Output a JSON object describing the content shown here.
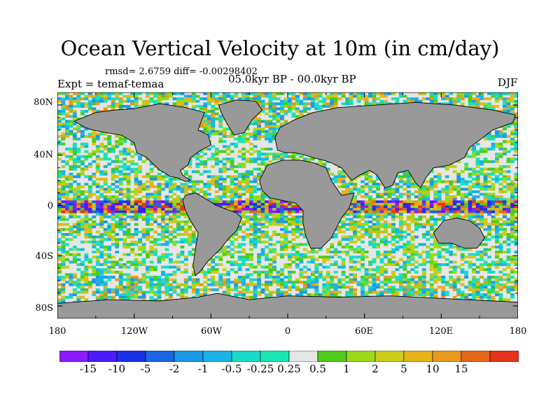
{
  "figure": {
    "title": "Ocean Vertical Velocity at 10m (in cm/day)",
    "stats": "rmsd= 2.6759 diff= -0.00298402",
    "experiment": "Expt = temaf-temaa",
    "period": "05.0kyr BP - 00.0kyr BP",
    "season": "DJF"
  },
  "map": {
    "projection": "cylindrical equidistant",
    "land_color": "#999999",
    "ocean_background": "#e6e6e6",
    "lat_labels": [
      "80N",
      "40N",
      "0",
      "40S",
      "80S"
    ],
    "lon_labels": [
      "180",
      "120W",
      "60W",
      "0",
      "60E",
      "120E",
      "180"
    ]
  },
  "colorbar": {
    "colors": [
      "#8c1aff",
      "#4d1aff",
      "#1a33e6",
      "#1a66e6",
      "#1a99e6",
      "#1ab3e6",
      "#1ad9c8",
      "#1ae6b3",
      "#e6e6e6",
      "#4dcc1a",
      "#99d91a",
      "#cccc1a",
      "#e6b31a",
      "#e6991a",
      "#e6661a",
      "#e6331a"
    ],
    "labels": [
      "-15",
      "-10",
      "-5",
      "-2",
      "-1",
      "-0.5",
      "-0.25",
      "0.25",
      "0.5",
      "1",
      "2",
      "5",
      "10",
      "15"
    ]
  }
}
